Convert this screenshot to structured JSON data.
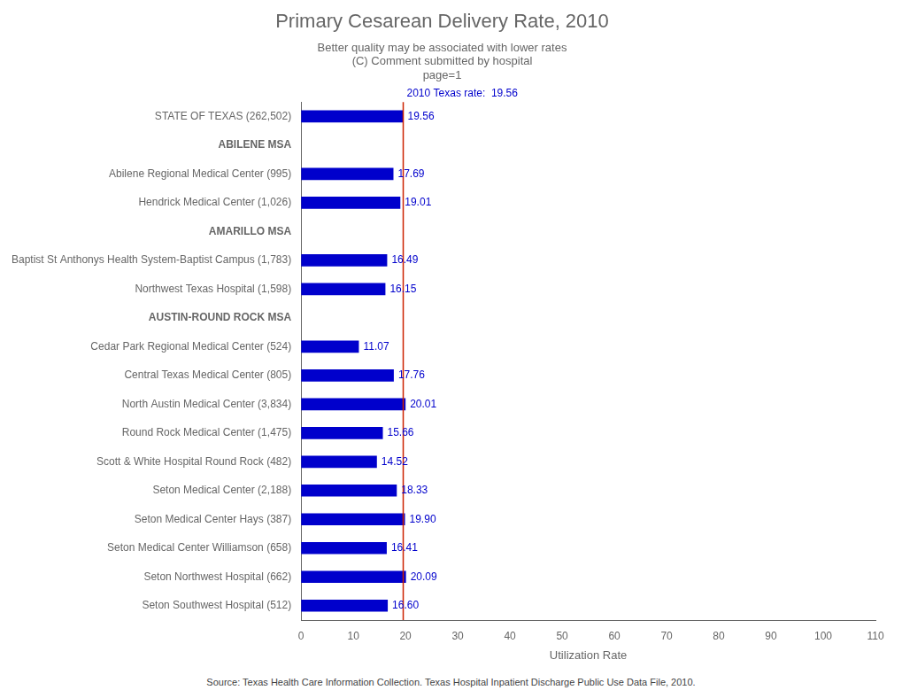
{
  "chart_data": {
    "type": "bar",
    "orientation": "horizontal",
    "title": "Primary Cesarean Delivery Rate, 2010",
    "subtitle": [
      "Better quality may be associated with lower rates",
      "(C) Comment submitted by hospital",
      "page=1"
    ],
    "xlabel": "Utilization Rate",
    "footer": "Source: Texas Health Care Information Collection. Texas Hospital Inpatient Discharge Public Use Data File, 2010.",
    "categories": [
      "STATE OF TEXAS (262,502)",
      "ABILENE MSA",
      "Abilene Regional Medical Center (995)",
      "Hendrick Medical Center (1,026)",
      "AMARILLO MSA",
      "Baptist St Anthonys Health System-Baptist Campus (1,783)",
      "Northwest Texas Hospital (1,598)",
      "AUSTIN-ROUND ROCK MSA",
      "Cedar Park Regional Medical Center (524)",
      "Central Texas Medical Center (805)",
      "North Austin Medical Center (3,834)",
      "Round Rock Medical Center (1,475)",
      "Scott & White Hospital Round Rock (482)",
      "Seton Medical Center (2,188)",
      "Seton Medical Center Hays (387)",
      "Seton Medical Center Williamson (658)",
      "Seton Northwest Hospital (662)",
      "Seton Southwest Hospital (512)"
    ],
    "values": [
      19.56,
      null,
      17.69,
      19.01,
      null,
      16.49,
      16.15,
      null,
      11.07,
      17.76,
      20.01,
      15.66,
      14.52,
      18.33,
      19.9,
      16.41,
      20.09,
      16.6
    ],
    "value_labels": [
      "19.56",
      null,
      "17.69",
      "19.01",
      null,
      "16.49",
      "16.15",
      null,
      "11.07",
      "17.76",
      "20.01",
      "15.66",
      "14.52",
      "18.33",
      "19.90",
      "16.41",
      "20.09",
      "16.60"
    ],
    "data_labels": true,
    "color": "#0000cc",
    "xlim": [
      0,
      110
    ],
    "xticks": [
      0,
      10,
      20,
      30,
      40,
      50,
      60,
      70,
      80,
      90,
      100,
      110
    ],
    "grid": false,
    "annotations": [
      {
        "x": 19.56,
        "label": "2010 Texas rate:  19.56",
        "color": "#cc2200"
      }
    ]
  }
}
